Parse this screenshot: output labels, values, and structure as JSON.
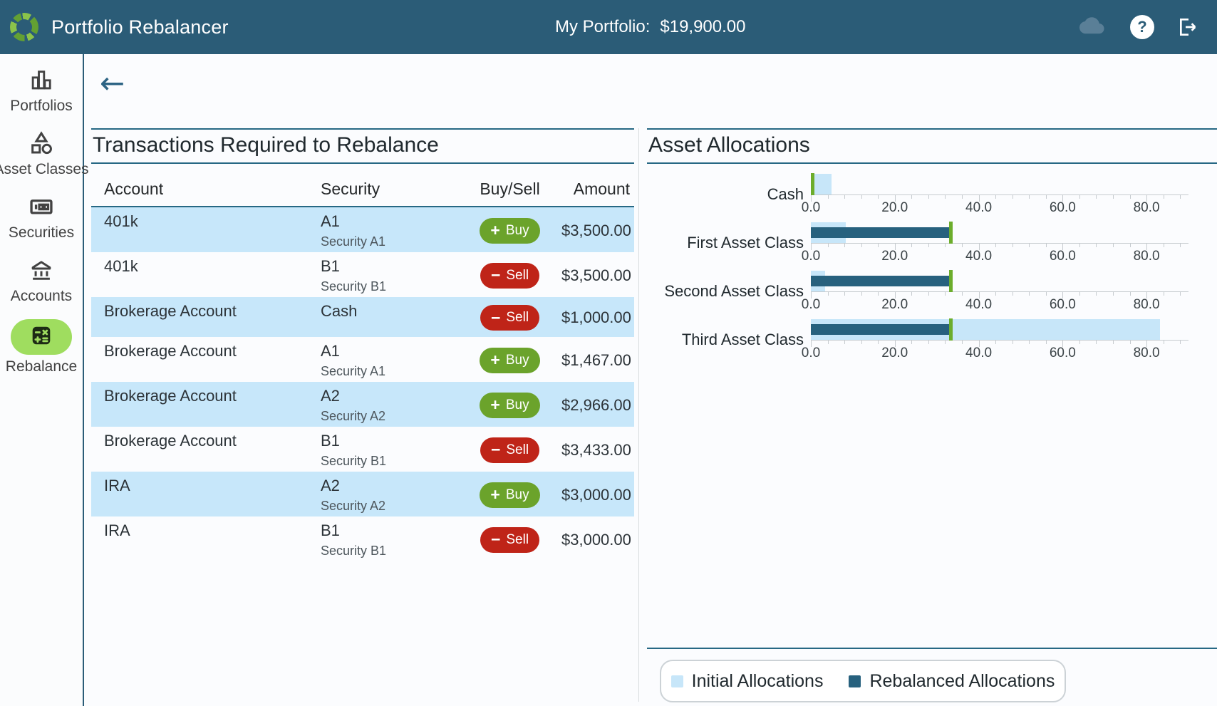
{
  "topbar": {
    "app_title": "Portfolio Rebalancer",
    "portfolio_label": "My Portfolio:",
    "portfolio_value": "$19,900.00",
    "help_icon_glyph": "?"
  },
  "back_icon_glyph": "←",
  "sidebar": {
    "items": [
      {
        "label": "Portfolios",
        "icon": "bar-chart-icon",
        "active": false
      },
      {
        "label": "Asset Classes",
        "icon": "shapes-icon",
        "active": false
      },
      {
        "label": "Securities",
        "icon": "banknote-icon",
        "active": false
      },
      {
        "label": "Accounts",
        "icon": "bank-icon",
        "active": false
      },
      {
        "label": "Rebalance",
        "icon": "calculator-icon",
        "active": true
      }
    ]
  },
  "transactions": {
    "title": "Transactions Required to Rebalance",
    "columns": [
      "Account",
      "Security",
      "Buy/Sell",
      "Amount"
    ],
    "buy_label": "Buy",
    "sell_label": "Sell",
    "buy_icon": "+",
    "sell_icon": "−",
    "rows": [
      {
        "account": "401k",
        "security": "A1",
        "security_sub": "Security A1",
        "action": "Buy",
        "amount": "$3,500.00",
        "highlight": true
      },
      {
        "account": "401k",
        "security": "B1",
        "security_sub": "Security B1",
        "action": "Sell",
        "amount": "$3,500.00",
        "highlight": false
      },
      {
        "account": "Brokerage Account",
        "security": "Cash",
        "security_sub": "",
        "action": "Sell",
        "amount": "$1,000.00",
        "highlight": true
      },
      {
        "account": "Brokerage Account",
        "security": "A1",
        "security_sub": "Security A1",
        "action": "Buy",
        "amount": "$1,467.00",
        "highlight": false
      },
      {
        "account": "Brokerage Account",
        "security": "A2",
        "security_sub": "Security A2",
        "action": "Buy",
        "amount": "$2,966.00",
        "highlight": true
      },
      {
        "account": "Brokerage Account",
        "security": "B1",
        "security_sub": "Security B1",
        "action": "Sell",
        "amount": "$3,433.00",
        "highlight": false
      },
      {
        "account": "IRA",
        "security": "A2",
        "security_sub": "Security A2",
        "action": "Buy",
        "amount": "$3,000.00",
        "highlight": true
      },
      {
        "account": "IRA",
        "security": "B1",
        "security_sub": "Security B1",
        "action": "Sell",
        "amount": "$3,000.00",
        "highlight": false
      }
    ]
  },
  "allocations": {
    "title": "Asset Allocations",
    "legend": [
      {
        "label": "Initial Allocations",
        "color": "#c7e6f9"
      },
      {
        "label": "Rebalanced Allocations",
        "color": "#27617e"
      }
    ]
  },
  "chart_data": {
    "type": "bar",
    "orientation": "horizontal",
    "title": "Asset Allocations",
    "categories": [
      "Cash",
      "First Asset Class",
      "Second Asset Class",
      "Third Asset Class"
    ],
    "series": [
      {
        "name": "Initial Allocations",
        "color": "#c7e6f9",
        "values": [
          5.0,
          8.4,
          3.4,
          83.2
        ]
      },
      {
        "name": "Rebalanced Allocations",
        "color": "#27617e",
        "values": [
          0.0,
          33.3,
          33.3,
          33.3
        ]
      }
    ],
    "target_values": [
      0.0,
      33.3,
      33.3,
      33.3
    ],
    "target_marker_color": "#6cad2c",
    "xlim": [
      0,
      90
    ],
    "tick_step": 20,
    "minor_tick_step": 4,
    "tick_labels": [
      "0.0",
      "20.0",
      "40.0",
      "60.0",
      "80.0"
    ],
    "axis_repeated_per_category": true,
    "legend_position": "bottom"
  },
  "colors": {
    "topbar": "#2b5c77",
    "section_border": "#266884",
    "row_highlight": "#c7e7fa",
    "buy_green": "#6ba32b",
    "sell_red": "#bf2418",
    "active_item_green": "#9fdd5f",
    "logo_green_light": "#8bc34a",
    "logo_green_dark": "#63a033"
  }
}
